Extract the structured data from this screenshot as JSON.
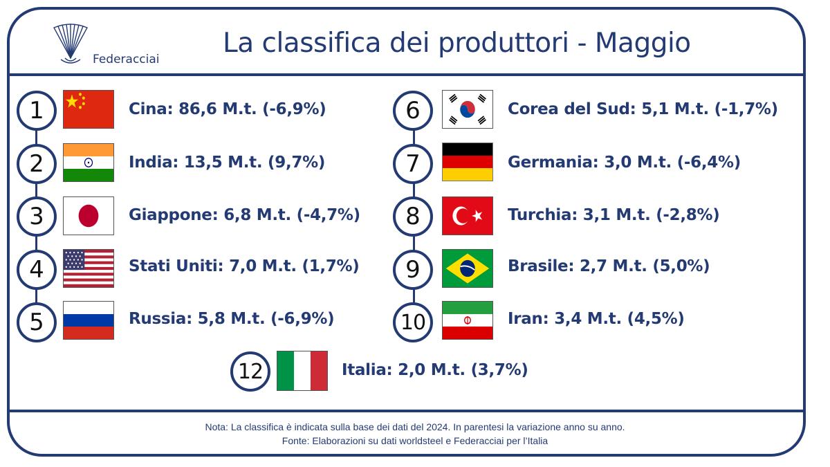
{
  "logo": {
    "icon": "federacciai-shell-logo",
    "name": "Federacciai"
  },
  "title": "La classifica dei produttori - Maggio",
  "producers": [
    {
      "rank": "1",
      "flag": "china-flag",
      "text": "Cina: 86,6 M.t. (-6,9%)"
    },
    {
      "rank": "2",
      "flag": "india-flag",
      "text": "India: 13,5 M.t. (9,7%)"
    },
    {
      "rank": "3",
      "flag": "japan-flag",
      "text": "Giappone: 6,8 M.t. (-4,7%)"
    },
    {
      "rank": "4",
      "flag": "united-states-flag",
      "text": "Stati Uniti: 7,0 M.t. (1,7%)"
    },
    {
      "rank": "5",
      "flag": "russia-flag",
      "text": "Russia: 5,8 M.t. (-6,9%)"
    },
    {
      "rank": "6",
      "flag": "south-korea-flag",
      "text": "Corea del Sud: 5,1 M.t. (-1,7%)"
    },
    {
      "rank": "7",
      "flag": "germany-flag",
      "text": "Germania: 3,0 M.t. (-6,4%)"
    },
    {
      "rank": "8",
      "flag": "turkey-flag",
      "text": "Turchia: 3,1 M.t. (-2,8%)"
    },
    {
      "rank": "9",
      "flag": "brazil-flag",
      "text": "Brasile: 2,7 M.t. (5,0%)"
    },
    {
      "rank": "10",
      "flag": "iran-flag",
      "text": "Iran: 3,4 M.t. (4,5%)"
    }
  ],
  "italy": {
    "rank": "12",
    "flag": "italy-flag",
    "text": "Italia: 2,0 M.t. (3,7%)"
  },
  "footer": {
    "note": "Nota: La classifica è indicata sulla base dei dati del 2024. In parentesi la variazione anno su anno.",
    "source": "Fonte: Elaborazioni su dati worldsteel e Federacciai per l’Italia"
  },
  "colors": {
    "primary": "#233a73"
  }
}
